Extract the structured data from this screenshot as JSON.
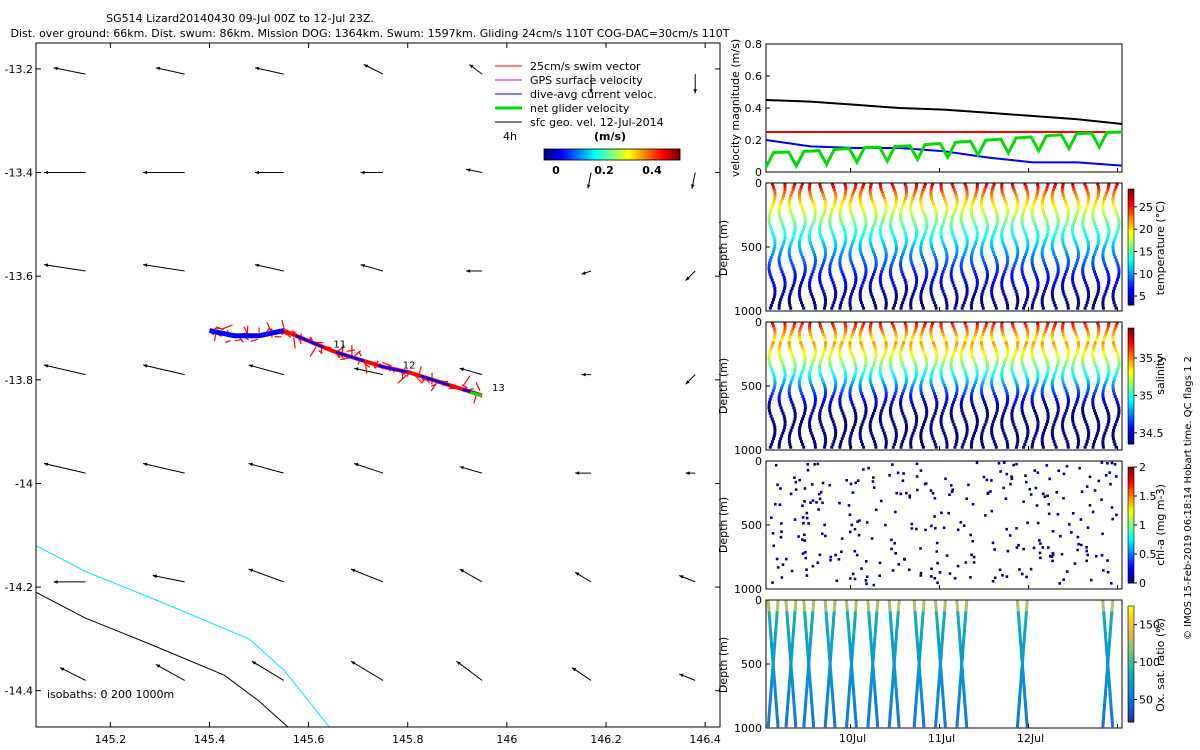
{
  "title_line1": "SG514 Lizard20140430 09-Jul 00Z to 12-Jul 23Z.",
  "title_line2": "Dist. over ground: 66km. Dist. swum: 86km. Mission DOG: 1364km. Swum: 1597km. Gliding 24cm/s 110T COG-DAC=30cm/s 110T",
  "side_note": "© IMOS 15-Feb-2019 06:18:14 Hobart time. QC flags 1  2",
  "colors": {
    "swim": "#ff0000",
    "gps": "#cc00cc",
    "dac": "#0000ff",
    "net": "#00dd00",
    "sfc": "#000000",
    "isobath0": "#00e5ff",
    "isobath200": "#000000"
  },
  "chart_data": [
    {
      "type": "scatter",
      "name": "map",
      "xticks": [
        "145.2",
        "145.4",
        "145.6",
        "145.8",
        "146",
        "146.2",
        "146.4"
      ],
      "xtick_values": [
        145.2,
        145.4,
        145.6,
        145.8,
        146.0,
        146.2,
        146.4
      ],
      "yticks": [
        "-13.2",
        "-13.4",
        "-13.6",
        "-13.8",
        "-14",
        "-14.2",
        "-14.4"
      ],
      "ytick_values": [
        -13.2,
        -13.4,
        -13.6,
        -13.8,
        -14.0,
        -14.2,
        -14.4
      ],
      "xlim": [
        145.05,
        146.43
      ],
      "ylim": [
        -14.47,
        -13.15
      ],
      "legend": {
        "placement": "top-right",
        "entries": [
          "25cm/s swim vector",
          "GPS surface velocity",
          "dive-avg current veloc.",
          "net glider velocity",
          "sfc geo. vel. 12-Jul-2014"
        ],
        "time_step": "4h",
        "colorbar_title": "(m/s)",
        "colorbar_ticks": [
          "0",
          "0.2",
          "0.4"
        ]
      },
      "isobaths_label": "isobaths: 0   200  1000m",
      "isobath_0m": [
        [
          145.05,
          -14.12
        ],
        [
          145.15,
          -14.17
        ],
        [
          145.28,
          -14.22
        ],
        [
          145.48,
          -14.3
        ],
        [
          145.55,
          -14.36
        ],
        [
          145.6,
          -14.42
        ],
        [
          145.65,
          -14.48
        ]
      ],
      "isobath_200m": [
        [
          145.05,
          -14.21
        ],
        [
          145.15,
          -14.26
        ],
        [
          145.28,
          -14.31
        ],
        [
          145.43,
          -14.37
        ],
        [
          145.5,
          -14.42
        ],
        [
          145.57,
          -14.48
        ]
      ],
      "track": [
        [
          145.4,
          -13.705
        ],
        [
          145.45,
          -13.715
        ],
        [
          145.5,
          -13.715
        ],
        [
          145.55,
          -13.705
        ],
        [
          145.6,
          -13.725
        ],
        [
          145.65,
          -13.745
        ],
        [
          145.7,
          -13.76
        ],
        [
          145.75,
          -13.775
        ],
        [
          145.8,
          -13.785
        ],
        [
          145.85,
          -13.8
        ],
        [
          145.9,
          -13.815
        ],
        [
          145.95,
          -13.83
        ]
      ],
      "track_labels": [
        {
          "text": "11",
          "x": 145.65,
          "y": -13.738
        },
        {
          "text": "12",
          "x": 145.79,
          "y": -13.778
        },
        {
          "text": "13",
          "x": 145.97,
          "y": -13.822
        }
      ],
      "sfc_vectors": {
        "lons": [
          145.15,
          145.35,
          145.55,
          145.75,
          145.95,
          146.17,
          146.38
        ],
        "lats": [
          -13.21,
          -13.4,
          -13.59,
          -13.79,
          -13.98,
          -14.19,
          -14.38
        ],
        "u": [
          [
            -0.1,
            -0.09,
            -0.09,
            -0.06,
            -0.04,
            0.0,
            0.0
          ],
          [
            -0.13,
            -0.13,
            -0.09,
            -0.07,
            -0.05,
            -0.01,
            -0.01
          ],
          [
            -0.13,
            -0.13,
            -0.09,
            -0.07,
            -0.05,
            -0.03,
            -0.03
          ],
          [
            -0.13,
            -0.13,
            -0.11,
            -0.09,
            -0.07,
            -0.03,
            -0.03
          ],
          [
            -0.13,
            -0.13,
            -0.11,
            -0.09,
            -0.07,
            -0.05,
            -0.03
          ],
          [
            -0.1,
            -0.1,
            -0.11,
            -0.1,
            -0.07,
            -0.05,
            -0.05
          ],
          [
            -0.08,
            -0.09,
            -0.1,
            -0.1,
            -0.08,
            -0.06,
            -0.05
          ]
        ],
        "v": [
          [
            0.02,
            0.02,
            0.02,
            0.03,
            0.03,
            -0.06,
            -0.06
          ],
          [
            0.0,
            0.0,
            0.0,
            0.0,
            0.01,
            -0.05,
            -0.05
          ],
          [
            0.02,
            0.02,
            0.02,
            0.02,
            0.0,
            -0.01,
            -0.03
          ],
          [
            0.03,
            0.03,
            0.03,
            0.02,
            0.02,
            0.0,
            -0.03
          ],
          [
            0.03,
            0.03,
            0.03,
            0.03,
            0.02,
            0.0,
            0.0
          ],
          [
            0.0,
            0.02,
            0.04,
            0.04,
            0.04,
            0.03,
            0.02
          ],
          [
            0.04,
            0.05,
            0.06,
            0.06,
            0.06,
            0.04,
            0.02
          ]
        ]
      }
    },
    {
      "type": "line",
      "name": "velocity",
      "ylabel": "velocity magnitude (m/s)",
      "ylim": [
        0,
        0.8
      ],
      "yticks": [
        "0",
        "0.2",
        "0.4",
        "0.6",
        "0.8"
      ],
      "x": [
        0,
        0.5,
        1,
        1.5,
        2,
        2.5,
        3,
        3.5,
        4
      ],
      "series": [
        {
          "values": [
            0.45,
            0.44,
            0.42,
            0.4,
            0.39,
            0.37,
            0.35,
            0.33,
            0.3
          ]
        },
        {
          "values": [
            0.25,
            0.25,
            0.25,
            0.25,
            0.25,
            0.25,
            0.25,
            0.25,
            0.25
          ]
        },
        {
          "values": [
            0.2,
            0.16,
            0.15,
            0.15,
            0.13,
            0.09,
            0.06,
            0.06,
            0.04
          ]
        },
        {
          "values": [
            0.12,
            0.13,
            0.15,
            0.16,
            0.18,
            0.2,
            0.22,
            0.24,
            0.25
          ]
        }
      ]
    },
    {
      "type": "scatter",
      "name": "temperature",
      "ylabel": "Depth (m)",
      "ylim": [
        1000,
        0
      ],
      "yticks": [
        "0",
        "500",
        "1000"
      ],
      "colorbar_label": "temperature (°C)",
      "colorbar_ticks": [
        "5",
        "10",
        "15",
        "20",
        "25"
      ],
      "colorbar_range": [
        3,
        29
      ],
      "n_dives": 35
    },
    {
      "type": "scatter",
      "name": "salinity",
      "ylabel": "Depth (m)",
      "ylim": [
        1000,
        0
      ],
      "yticks": [
        "0",
        "500",
        "1000"
      ],
      "colorbar_label": "salinity",
      "colorbar_ticks": [
        "34.5",
        "35",
        "35.5"
      ],
      "colorbar_range": [
        34.35,
        35.9
      ],
      "n_dives": 35
    },
    {
      "type": "scatter",
      "name": "chl-a",
      "ylabel": "Depth (m)",
      "ylim": [
        1000,
        0
      ],
      "yticks": [
        "0",
        "500",
        "1000"
      ],
      "colorbar_label": "chl-a (mg m-3)",
      "colorbar_ticks": [
        "0",
        "0.5",
        "1",
        "1.5",
        "2"
      ],
      "colorbar_range": [
        0,
        2
      ],
      "n_dives": 35
    },
    {
      "type": "scatter",
      "name": "oxygen",
      "ylabel": "Depth (m)",
      "ylim": [
        1000,
        0
      ],
      "yticks": [
        "0",
        "500",
        "1000"
      ],
      "xticks": [
        "10Jul",
        "11Jul",
        "12Jul"
      ],
      "colorbar_label": "Ox. sat. ratio (%)",
      "colorbar_ticks": [
        "50",
        "100",
        "150"
      ],
      "colorbar_range": [
        20,
        175
      ],
      "dive_positions": [
        0.02,
        0.07,
        0.12,
        0.18,
        0.24,
        0.3,
        0.36,
        0.43,
        0.49,
        0.55,
        0.72,
        0.96
      ]
    }
  ]
}
